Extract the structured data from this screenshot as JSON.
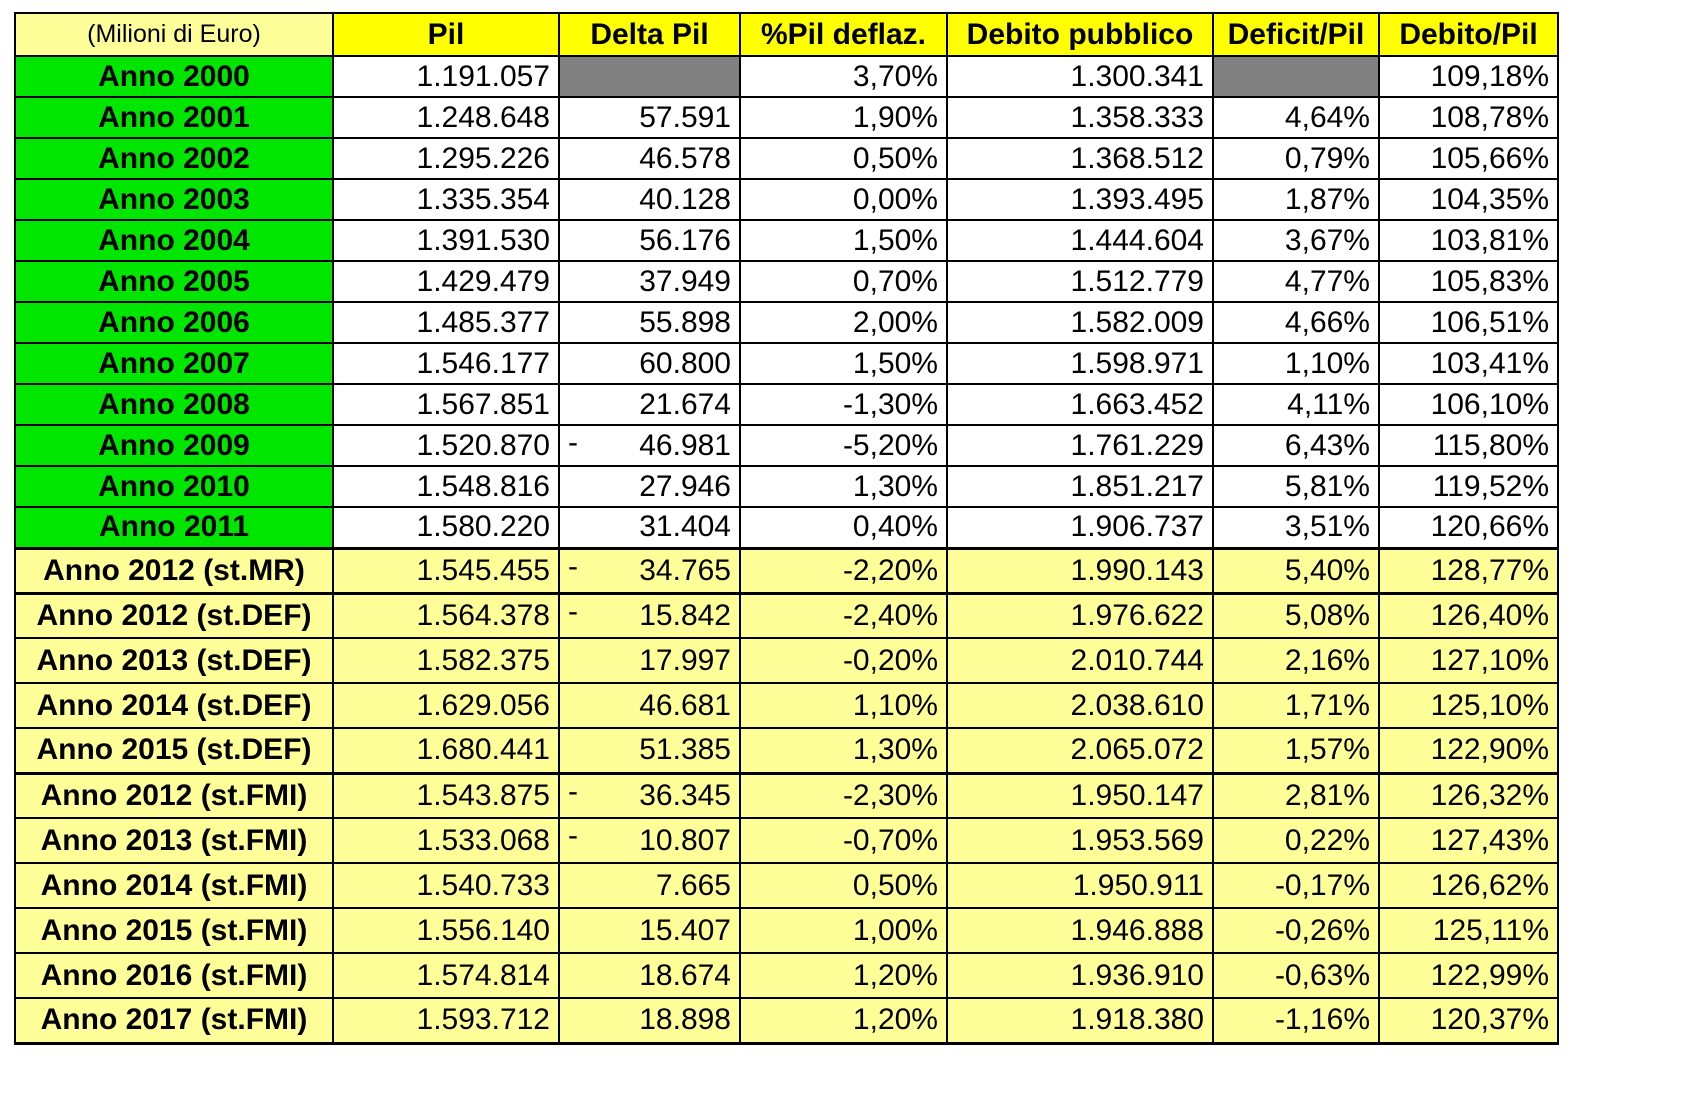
{
  "headers": [
    "(Milioni di Euro)",
    "Pil",
    "Delta Pil",
    "%Pil deflaz.",
    "Debito pubblico",
    "Deficit/Pil",
    "Debito/Pil"
  ],
  "rows": [
    {
      "label": "Anno 2000",
      "pil": "1.191.057",
      "delta_sign": "",
      "delta": "",
      "pil_deflaz": "3,70%",
      "debito": "1.300.341",
      "deficit_pil": "",
      "debito_pil": "109,18%"
    },
    {
      "label": "Anno 2001",
      "pil": "1.248.648",
      "delta_sign": "",
      "delta": "57.591",
      "pil_deflaz": "1,90%",
      "debito": "1.358.333",
      "deficit_pil": "4,64%",
      "debito_pil": "108,78%"
    },
    {
      "label": "Anno 2002",
      "pil": "1.295.226",
      "delta_sign": "",
      "delta": "46.578",
      "pil_deflaz": "0,50%",
      "debito": "1.368.512",
      "deficit_pil": "0,79%",
      "debito_pil": "105,66%"
    },
    {
      "label": "Anno 2003",
      "pil": "1.335.354",
      "delta_sign": "",
      "delta": "40.128",
      "pil_deflaz": "0,00%",
      "debito": "1.393.495",
      "deficit_pil": "1,87%",
      "debito_pil": "104,35%"
    },
    {
      "label": "Anno 2004",
      "pil": "1.391.530",
      "delta_sign": "",
      "delta": "56.176",
      "pil_deflaz": "1,50%",
      "debito": "1.444.604",
      "deficit_pil": "3,67%",
      "debito_pil": "103,81%"
    },
    {
      "label": "Anno 2005",
      "pil": "1.429.479",
      "delta_sign": "",
      "delta": "37.949",
      "pil_deflaz": "0,70%",
      "debito": "1.512.779",
      "deficit_pil": "4,77%",
      "debito_pil": "105,83%"
    },
    {
      "label": "Anno 2006",
      "pil": "1.485.377",
      "delta_sign": "",
      "delta": "55.898",
      "pil_deflaz": "2,00%",
      "debito": "1.582.009",
      "deficit_pil": "4,66%",
      "debito_pil": "106,51%"
    },
    {
      "label": "Anno 2007",
      "pil": "1.546.177",
      "delta_sign": "",
      "delta": "60.800",
      "pil_deflaz": "1,50%",
      "debito": "1.598.971",
      "deficit_pil": "1,10%",
      "debito_pil": "103,41%"
    },
    {
      "label": "Anno 2008",
      "pil": "1.567.851",
      "delta_sign": "",
      "delta": "21.674",
      "pil_deflaz": "-1,30%",
      "debito": "1.663.452",
      "deficit_pil": "4,11%",
      "debito_pil": "106,10%"
    },
    {
      "label": "Anno 2009",
      "pil": "1.520.870",
      "delta_sign": "-",
      "delta": "46.981",
      "pil_deflaz": "-5,20%",
      "debito": "1.761.229",
      "deficit_pil": "6,43%",
      "debito_pil": "115,80%"
    },
    {
      "label": "Anno 2010",
      "pil": "1.548.816",
      "delta_sign": "",
      "delta": "27.946",
      "pil_deflaz": "1,30%",
      "debito": "1.851.217",
      "deficit_pil": "5,81%",
      "debito_pil": "119,52%"
    },
    {
      "label": "Anno 2011",
      "pil": "1.580.220",
      "delta_sign": "",
      "delta": "31.404",
      "pil_deflaz": "0,40%",
      "debito": "1.906.737",
      "deficit_pil": "3,51%",
      "debito_pil": "120,66%"
    },
    {
      "label": "Anno 2012 (st.MR)",
      "pil": "1.545.455",
      "delta_sign": "-",
      "delta": "34.765",
      "pil_deflaz": "-2,20%",
      "debito": "1.990.143",
      "deficit_pil": "5,40%",
      "debito_pil": "128,77%"
    },
    {
      "label": "Anno 2012 (st.DEF)",
      "pil": "1.564.378",
      "delta_sign": "-",
      "delta": "15.842",
      "pil_deflaz": "-2,40%",
      "debito": "1.976.622",
      "deficit_pil": "5,08%",
      "debito_pil": "126,40%"
    },
    {
      "label": "Anno 2013 (st.DEF)",
      "pil": "1.582.375",
      "delta_sign": "",
      "delta": "17.997",
      "pil_deflaz": "-0,20%",
      "debito": "2.010.744",
      "deficit_pil": "2,16%",
      "debito_pil": "127,10%"
    },
    {
      "label": "Anno 2014 (st.DEF)",
      "pil": "1.629.056",
      "delta_sign": "",
      "delta": "46.681",
      "pil_deflaz": "1,10%",
      "debito": "2.038.610",
      "deficit_pil": "1,71%",
      "debito_pil": "125,10%"
    },
    {
      "label": "Anno 2015 (st.DEF)",
      "pil": "1.680.441",
      "delta_sign": "",
      "delta": "51.385",
      "pil_deflaz": "1,30%",
      "debito": "2.065.072",
      "deficit_pil": "1,57%",
      "debito_pil": "122,90%"
    },
    {
      "label": "Anno 2012 (st.FMI)",
      "pil": "1.543.875",
      "delta_sign": "-",
      "delta": "36.345",
      "pil_deflaz": "-2,30%",
      "debito": "1.950.147",
      "deficit_pil": "2,81%",
      "debito_pil": "126,32%"
    },
    {
      "label": "Anno 2013 (st.FMI)",
      "pil": "1.533.068",
      "delta_sign": "-",
      "delta": "10.807",
      "pil_deflaz": "-0,70%",
      "debito": "1.953.569",
      "deficit_pil": "0,22%",
      "debito_pil": "127,43%"
    },
    {
      "label": "Anno 2014 (st.FMI)",
      "pil": "1.540.733",
      "delta_sign": "",
      "delta": "7.665",
      "pil_deflaz": "0,50%",
      "debito": "1.950.911",
      "deficit_pil": "-0,17%",
      "debito_pil": "126,62%"
    },
    {
      "label": "Anno 2015 (st.FMI)",
      "pil": "1.556.140",
      "delta_sign": "",
      "delta": "15.407",
      "pil_deflaz": "1,00%",
      "debito": "1.946.888",
      "deficit_pil": "-0,26%",
      "debito_pil": "125,11%"
    },
    {
      "label": "Anno 2016 (st.FMI)",
      "pil": "1.574.814",
      "delta_sign": "",
      "delta": "18.674",
      "pil_deflaz": "1,20%",
      "debito": "1.936.910",
      "deficit_pil": "-0,63%",
      "debito_pil": "122,99%"
    },
    {
      "label": "Anno 2017 (st.FMI)",
      "pil": "1.593.712",
      "delta_sign": "",
      "delta": "18.898",
      "pil_deflaz": "1,20%",
      "debito": "1.918.380",
      "deficit_pil": "-1,16%",
      "debito_pil": "120,37%"
    }
  ],
  "colors": {
    "header_yellow": "#ffff00",
    "label_green": "#00e600",
    "projection_yellow": "#ffff99",
    "blank_gray": "#808080"
  }
}
